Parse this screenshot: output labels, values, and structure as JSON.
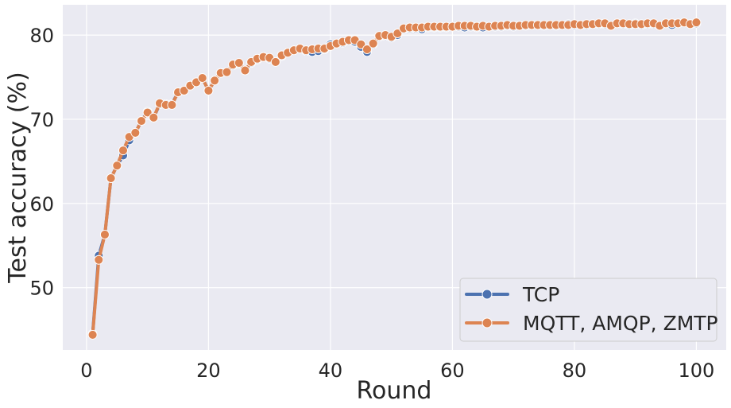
{
  "chart_data": {
    "type": "line",
    "xlabel": "Round",
    "ylabel": "Test accuracy (%)",
    "xlim": [
      -3.9,
      104.9
    ],
    "ylim": [
      42.6,
      83.6
    ],
    "xticks": [
      0,
      20,
      40,
      60,
      80,
      100
    ],
    "yticks": [
      50,
      60,
      70,
      80
    ],
    "grid": true,
    "legend_position": "bottom-right",
    "colors": {
      "background": "#eaeaf2",
      "grid": "#ffffff",
      "TCP": "#4c72b0",
      "MQTT, AMQP, ZMTP": "#dd8452",
      "legend_bg": "#eaeaf2",
      "legend_border": "#cccccc"
    },
    "x": [
      1,
      2,
      3,
      4,
      5,
      6,
      7,
      8,
      9,
      10,
      11,
      12,
      13,
      14,
      15,
      16,
      17,
      18,
      19,
      20,
      21,
      22,
      23,
      24,
      25,
      26,
      27,
      28,
      29,
      30,
      31,
      32,
      33,
      34,
      35,
      36,
      37,
      38,
      39,
      40,
      41,
      42,
      43,
      44,
      45,
      46,
      47,
      48,
      49,
      50,
      51,
      52,
      53,
      54,
      55,
      56,
      57,
      58,
      59,
      60,
      61,
      62,
      63,
      64,
      65,
      66,
      67,
      68,
      69,
      70,
      71,
      72,
      73,
      74,
      75,
      76,
      77,
      78,
      79,
      80,
      81,
      82,
      83,
      84,
      85,
      86,
      87,
      88,
      89,
      90,
      91,
      92,
      93,
      94,
      95,
      96,
      97,
      98,
      99,
      100
    ],
    "series": [
      {
        "name": "TCP",
        "values": [
          44.5,
          53.8,
          56.3,
          63.0,
          64.5,
          65.7,
          67.5,
          68.4,
          69.8,
          70.9,
          70.2,
          71.8,
          71.8,
          71.8,
          73.2,
          73.4,
          74.0,
          74.4,
          74.9,
          73.4,
          74.6,
          75.5,
          75.6,
          76.4,
          76.6,
          75.8,
          76.7,
          77.1,
          77.4,
          77.2,
          76.8,
          77.5,
          77.9,
          78.2,
          78.4,
          78.1,
          78.0,
          78.1,
          78.3,
          78.9,
          79.0,
          79.1,
          79.3,
          79.2,
          78.6,
          78.0,
          78.9,
          79.8,
          79.9,
          79.7,
          80.0,
          80.7,
          80.8,
          80.8,
          80.7,
          80.9,
          80.9,
          80.9,
          80.9,
          81.0,
          81.0,
          80.9,
          81.0,
          80.9,
          80.9,
          81.0,
          81.0,
          81.0,
          81.1,
          81.0,
          81.1,
          81.1,
          81.2,
          81.2,
          81.1,
          81.2,
          81.1,
          81.2,
          81.3,
          81.2,
          81.2,
          81.2,
          81.3,
          81.3,
          81.3,
          81.1,
          81.4,
          81.3,
          81.2,
          81.4,
          81.2,
          81.3,
          81.3,
          81.1,
          81.4,
          81.2,
          81.4,
          81.5,
          81.3,
          81.4
        ]
      },
      {
        "name": "MQTT, AMQP, ZMTP",
        "values": [
          44.4,
          53.3,
          56.3,
          63.0,
          64.5,
          66.3,
          67.9,
          68.4,
          69.8,
          70.8,
          70.2,
          71.9,
          71.7,
          71.7,
          73.2,
          73.4,
          74.0,
          74.4,
          74.9,
          73.4,
          74.6,
          75.5,
          75.6,
          76.5,
          76.7,
          75.8,
          76.8,
          77.2,
          77.4,
          77.3,
          76.8,
          77.6,
          77.9,
          78.2,
          78.4,
          78.2,
          78.3,
          78.4,
          78.4,
          78.7,
          79.0,
          79.2,
          79.4,
          79.4,
          78.9,
          78.3,
          79.0,
          79.9,
          80.0,
          79.8,
          80.2,
          80.8,
          80.9,
          80.9,
          80.9,
          81.0,
          81.0,
          81.0,
          81.0,
          81.0,
          81.1,
          81.1,
          81.1,
          81.0,
          81.1,
          81.0,
          81.1,
          81.1,
          81.2,
          81.1,
          81.1,
          81.2,
          81.2,
          81.2,
          81.2,
          81.2,
          81.2,
          81.2,
          81.2,
          81.3,
          81.2,
          81.3,
          81.3,
          81.4,
          81.4,
          81.1,
          81.4,
          81.4,
          81.3,
          81.3,
          81.3,
          81.4,
          81.4,
          81.1,
          81.4,
          81.4,
          81.4,
          81.5,
          81.3,
          81.5
        ]
      }
    ]
  }
}
